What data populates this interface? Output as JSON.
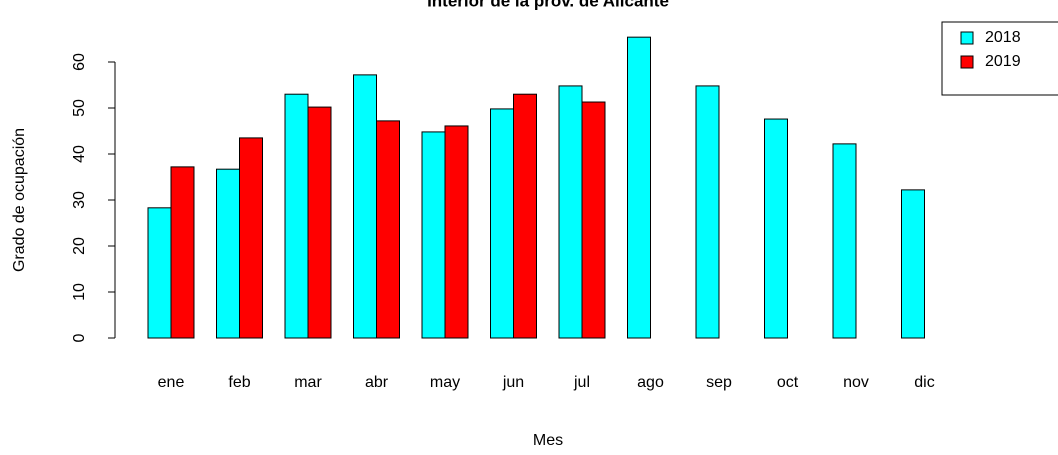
{
  "chart_data": {
    "type": "bar",
    "title": "Interior de la prov. de Alicante",
    "x_label": "Mes",
    "y_label": "Grado de ocupación",
    "categories": [
      "ene",
      "feb",
      "mar",
      "abr",
      "may",
      "jun",
      "jul",
      "ago",
      "sep",
      "oct",
      "nov",
      "dic"
    ],
    "series": [
      {
        "name": "2018",
        "color": "#00ffff",
        "values": [
          28.3,
          36.7,
          53,
          57.2,
          44.8,
          49.8,
          54.8,
          65.4,
          54.8,
          47.6,
          42.2,
          32.2
        ]
      },
      {
        "name": "2019",
        "color": "#ff0000",
        "values": [
          37.2,
          43.5,
          50.2,
          47.2,
          46.1,
          53,
          51.3,
          null,
          null,
          null,
          null,
          null
        ]
      }
    ],
    "ylim": [
      0,
      66
    ],
    "yticks": [
      0,
      10,
      20,
      30,
      40,
      50,
      60
    ],
    "legend": "top-right",
    "grid": false
  }
}
